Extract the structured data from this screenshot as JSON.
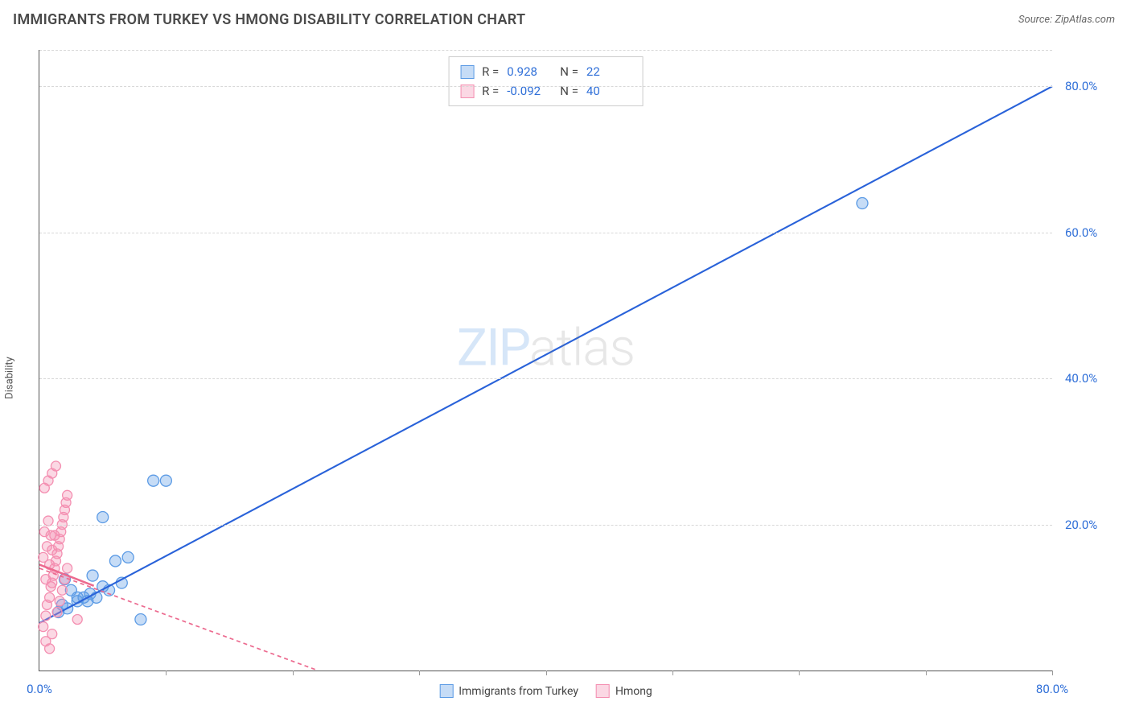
{
  "title": "IMMIGRANTS FROM TURKEY VS HMONG DISABILITY CORRELATION CHART",
  "source_label": "Source:",
  "source_name": "ZipAtlas.com",
  "y_axis_label": "Disability",
  "watermark_zip": "ZIP",
  "watermark_atlas": "atlas",
  "chart": {
    "type": "scatter",
    "background": "#ffffff",
    "grid_color": "#d8d8d8",
    "axis_color": "#555555",
    "xlim": [
      0,
      80
    ],
    "ylim": [
      0,
      85
    ],
    "y_ticks": [
      {
        "v": 20,
        "label": "20.0%"
      },
      {
        "v": 40,
        "label": "40.0%"
      },
      {
        "v": 60,
        "label": "60.0%"
      },
      {
        "v": 80,
        "label": "80.0%"
      }
    ],
    "x_tick_vals": [
      10,
      20,
      30,
      40,
      50,
      60,
      70,
      80
    ],
    "x_labels": [
      {
        "v": 0,
        "label": "0.0%"
      },
      {
        "v": 80,
        "label": "80.0%"
      }
    ],
    "legend_top": [
      {
        "swatch": "blue",
        "r_label": "R =",
        "r_val": "0.928",
        "n_label": "N =",
        "n_val": "22"
      },
      {
        "swatch": "pink",
        "r_label": "R =",
        "r_val": "-0.092",
        "n_label": "N =",
        "n_val": "40"
      }
    ],
    "legend_bottom": [
      {
        "swatch": "blue",
        "label": "Immigrants from Turkey"
      },
      {
        "swatch": "pink",
        "label": "Hmong"
      }
    ],
    "series": [
      {
        "name": "Immigrants from Turkey",
        "color": "#5c9be5",
        "fill": "rgba(92,155,229,0.35)",
        "marker_r": 7,
        "trend": {
          "x1": 0,
          "y1": 6.5,
          "x2": 80,
          "y2": 80,
          "color": "#2962d9",
          "width": 2.1
        },
        "points": [
          [
            1.5,
            8
          ],
          [
            2.2,
            8.5
          ],
          [
            3,
            9.5
          ],
          [
            3.5,
            10
          ],
          [
            3.8,
            9.5
          ],
          [
            4,
            10.5
          ],
          [
            4.5,
            10
          ],
          [
            5,
            11.5
          ],
          [
            5.5,
            11
          ],
          [
            6,
            15
          ],
          [
            7,
            15.5
          ],
          [
            6.5,
            12
          ],
          [
            5,
            21
          ],
          [
            8,
            7
          ],
          [
            9,
            26
          ],
          [
            10,
            26
          ],
          [
            3,
            10
          ],
          [
            2,
            12.5
          ],
          [
            2.5,
            11
          ],
          [
            4.2,
            13
          ],
          [
            1.8,
            9
          ],
          [
            65,
            64
          ]
        ]
      },
      {
        "name": "Hmong",
        "color": "#f48fb1",
        "fill": "rgba(244,143,177,0.35)",
        "marker_r": 6,
        "trend": {
          "x1": 0,
          "y1": 14,
          "x2": 22,
          "y2": 0,
          "color": "#ec6a8f",
          "width": 1.7,
          "dash": "5 4"
        },
        "trend_solid": {
          "x1": 0,
          "y1": 14.5,
          "x2": 4.3,
          "y2": 11.6,
          "color": "#ec6a8f",
          "width": 2.5
        },
        "points": [
          [
            0.3,
            6
          ],
          [
            0.5,
            7.5
          ],
          [
            0.6,
            9
          ],
          [
            0.8,
            10
          ],
          [
            0.9,
            11.5
          ],
          [
            1.0,
            12
          ],
          [
            1.1,
            13
          ],
          [
            1.2,
            14
          ],
          [
            1.3,
            15
          ],
          [
            1.4,
            16
          ],
          [
            1.5,
            17
          ],
          [
            1.6,
            18
          ],
          [
            1.7,
            19
          ],
          [
            1.8,
            20
          ],
          [
            1.9,
            21
          ],
          [
            2.0,
            22
          ],
          [
            2.1,
            23
          ],
          [
            2.2,
            24
          ],
          [
            0.4,
            25
          ],
          [
            0.7,
            26
          ],
          [
            1.0,
            27
          ],
          [
            1.3,
            28
          ],
          [
            0.5,
            12.5
          ],
          [
            0.8,
            14.5
          ],
          [
            1.0,
            16.5
          ],
          [
            1.2,
            18.5
          ],
          [
            1.4,
            8
          ],
          [
            1.6,
            9.5
          ],
          [
            1.8,
            11
          ],
          [
            2.0,
            12.5
          ],
          [
            2.2,
            14
          ],
          [
            0.3,
            15.5
          ],
          [
            0.6,
            17
          ],
          [
            0.9,
            18.5
          ],
          [
            3.0,
            7
          ],
          [
            1.0,
            5
          ],
          [
            0.5,
            4
          ],
          [
            0.8,
            3
          ],
          [
            0.4,
            19
          ],
          [
            0.7,
            20.5
          ]
        ]
      }
    ]
  }
}
